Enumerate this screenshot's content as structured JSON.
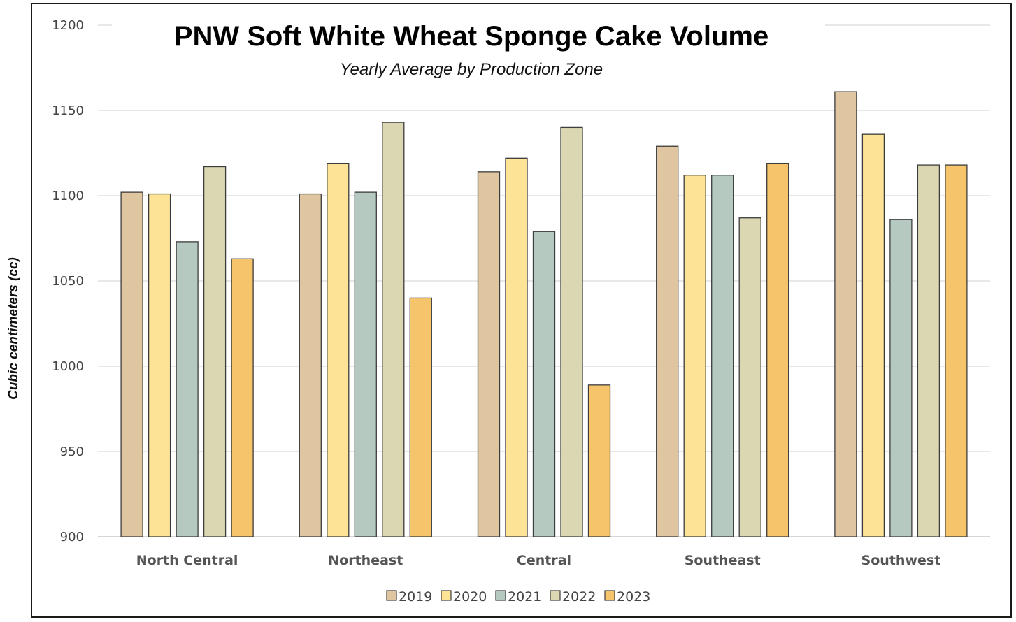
{
  "chart_data": {
    "type": "bar",
    "title": "PNW Soft White Wheat Sponge Cake Volume",
    "subtitle": "Yearly Average by Production Zone",
    "xlabel": "",
    "ylabel": "Cubic centimeters (cc)",
    "ylim": [
      900,
      1200
    ],
    "yticks": [
      900,
      950,
      1000,
      1050,
      1100,
      1150,
      1200
    ],
    "grid": true,
    "legend_position": "bottom",
    "categories": [
      "North Central",
      "Northeast",
      "Central",
      "Southeast",
      "Southwest"
    ],
    "series": [
      {
        "name": "2019",
        "color": "#dfc5a0",
        "values": [
          1102,
          1101,
          1114,
          1129,
          1161
        ]
      },
      {
        "name": "2020",
        "color": "#fde396",
        "values": [
          1101,
          1119,
          1122,
          1112,
          1136
        ]
      },
      {
        "name": "2021",
        "color": "#b5c9c0",
        "values": [
          1073,
          1102,
          1079,
          1112,
          1086
        ]
      },
      {
        "name": "2022",
        "color": "#dbd7b2",
        "values": [
          1117,
          1143,
          1140,
          1087,
          1118
        ]
      },
      {
        "name": "2023",
        "color": "#f6c46a",
        "values": [
          1063,
          1040,
          989,
          1119,
          1118
        ]
      }
    ]
  }
}
